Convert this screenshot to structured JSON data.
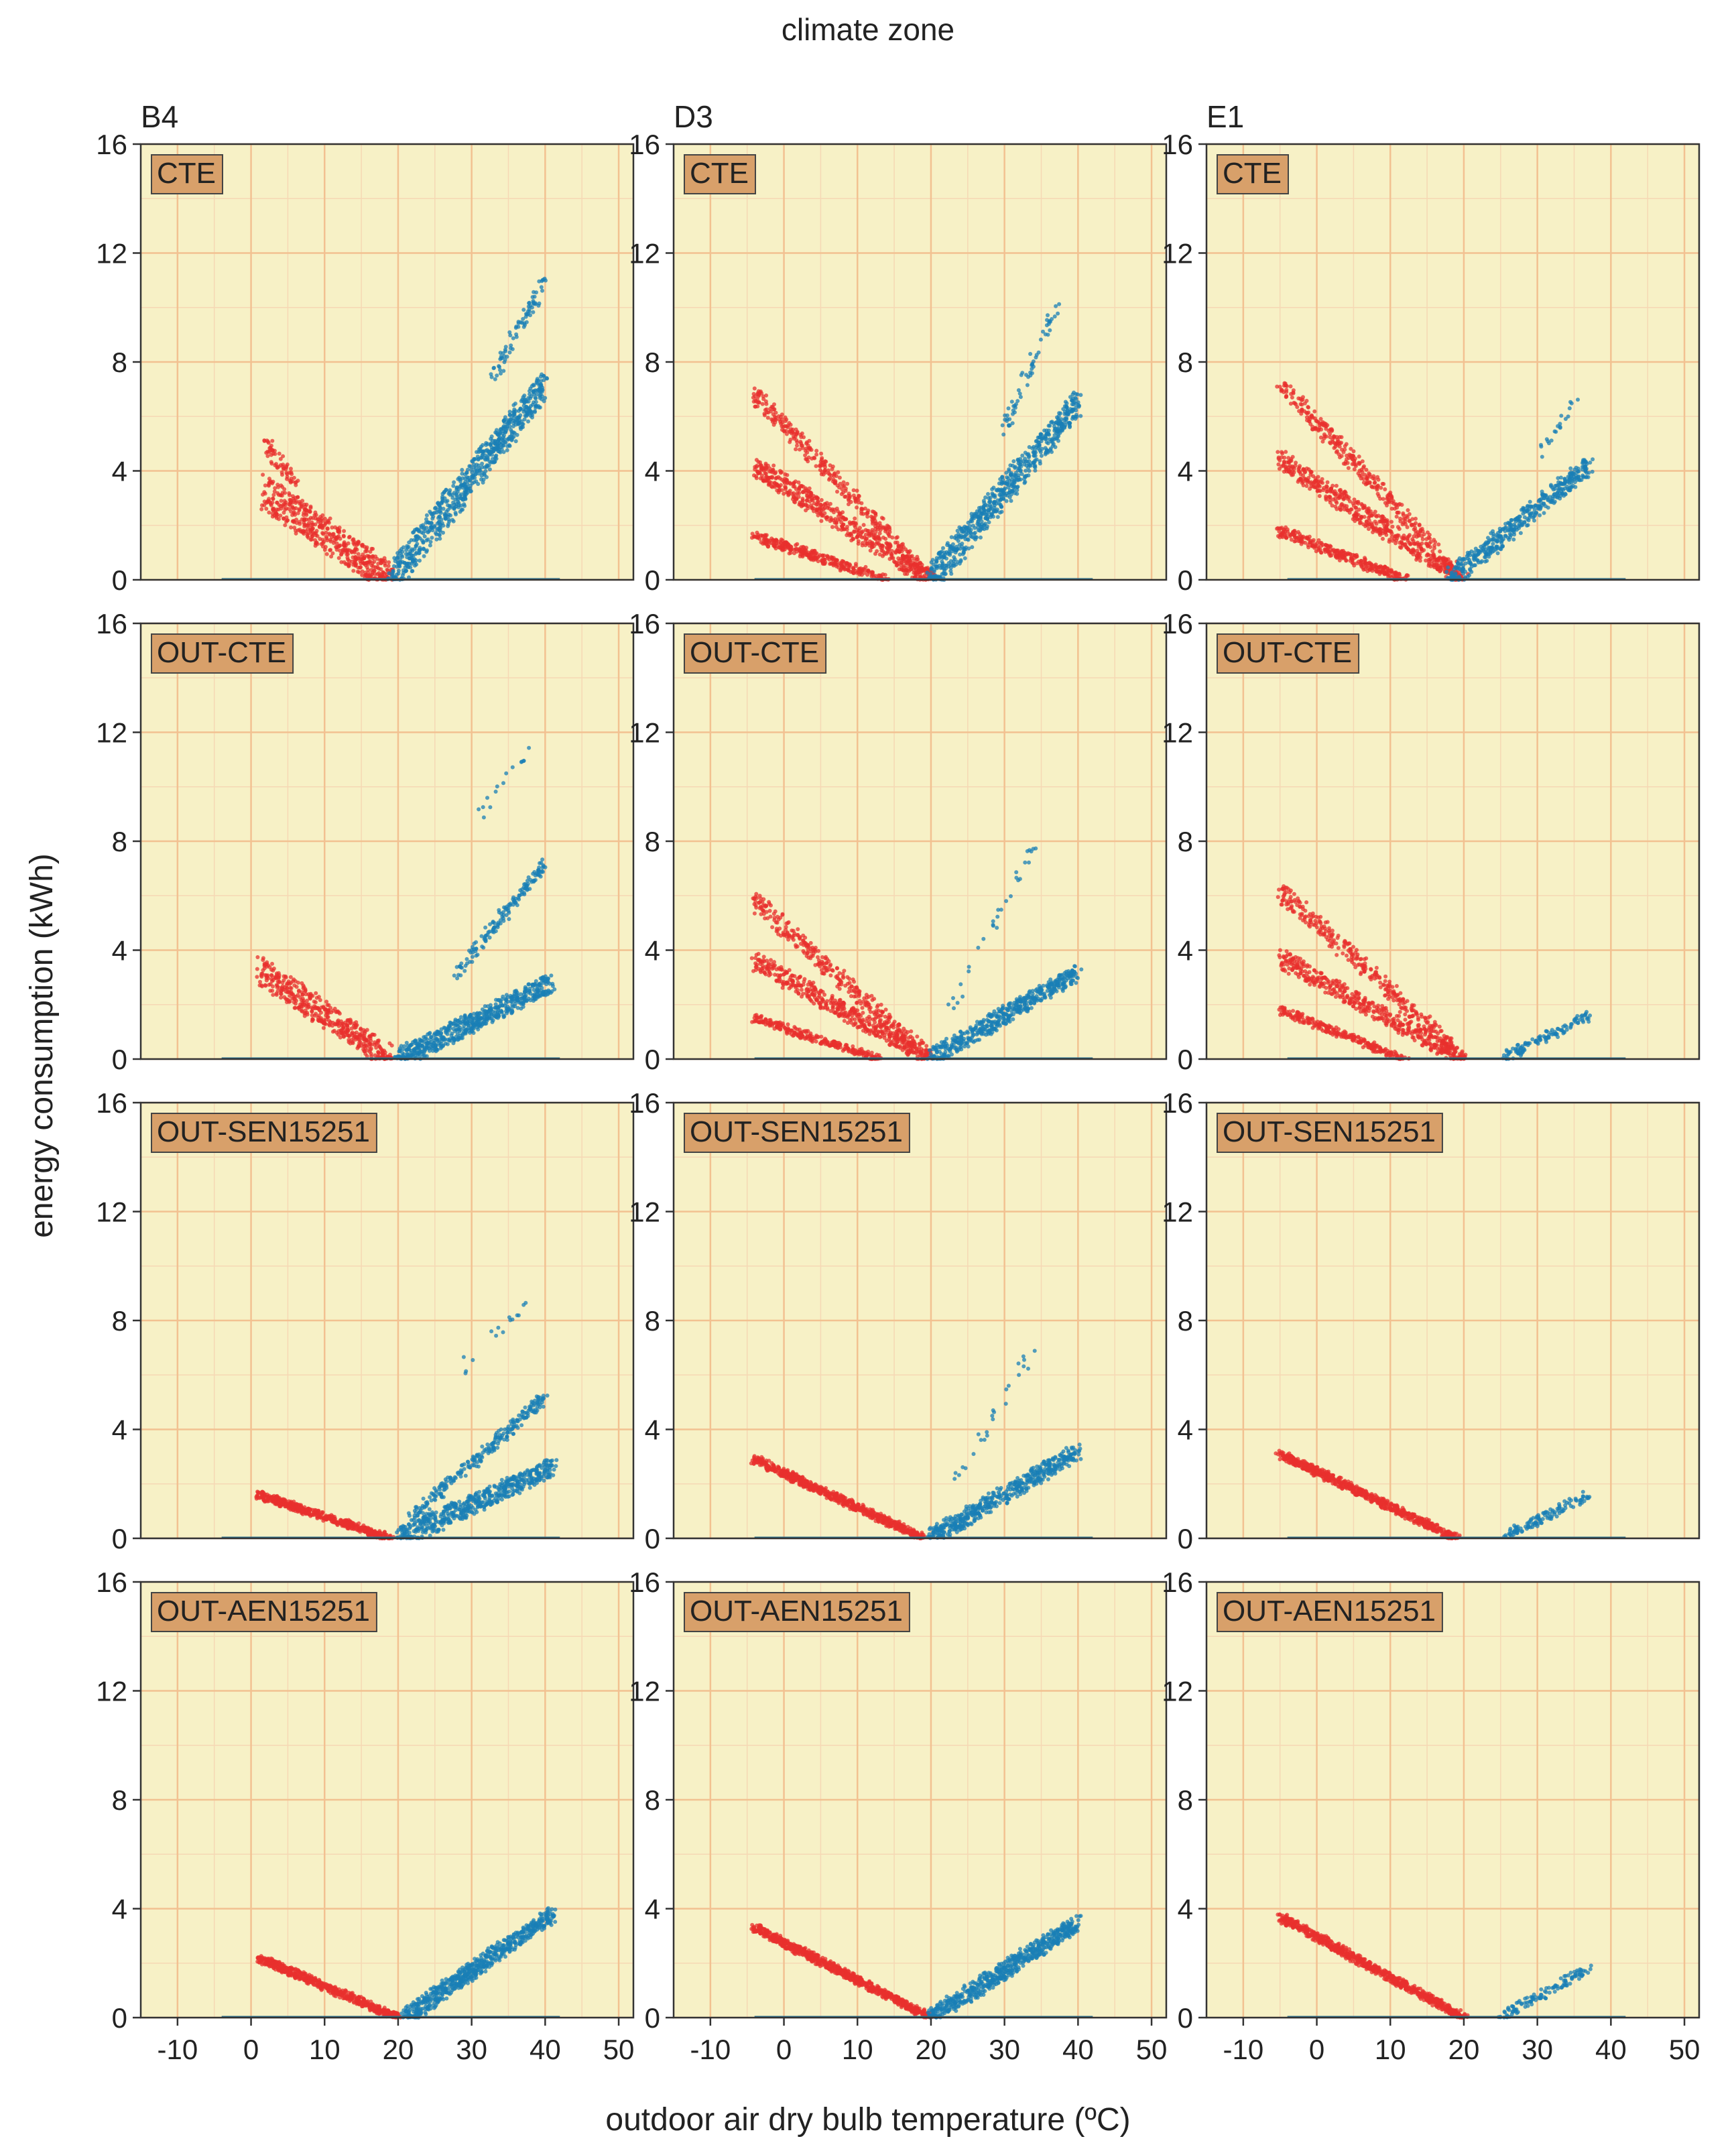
{
  "figure_title": "climate zone",
  "chart_data": {
    "type": "scatter",
    "facet_row_label": "energy consumption (kWh)",
    "facet_col_label": "climate zone",
    "xlabel": "outdoor air dry bulb temperature (ºC)",
    "ylabel": "energy consumption (kWh)",
    "xlim": [
      -15,
      52
    ],
    "ylim": [
      0,
      16
    ],
    "x_ticks": [
      -10,
      0,
      10,
      20,
      30,
      40,
      50
    ],
    "y_ticks": [
      0,
      4,
      8,
      12,
      16
    ],
    "grid": true,
    "columns": [
      "B4",
      "D3",
      "E1"
    ],
    "rows": [
      "CTE",
      "OUT-CTE",
      "OUT-SEN15251",
      "OUT-AEN15251"
    ],
    "series_colors": {
      "heating": "#e8302e",
      "cooling": "#1a7fb5"
    },
    "panels": [
      {
        "zone": "B4",
        "scenario": "CTE",
        "heating": [
          {
            "x": [
              2,
              19
            ],
            "y": [
              3.2,
              0
            ],
            "spread": 1.4,
            "n": 500
          },
          {
            "x": [
              2,
              6
            ],
            "y": [
              5,
              3.6
            ],
            "spread": 0.6,
            "n": 60
          }
        ],
        "cooling": [
          {
            "x": [
              19,
              40
            ],
            "y": [
              0,
              7.2
            ],
            "spread": 1.3,
            "n": 700
          },
          {
            "x": [
              33,
              40
            ],
            "y": [
              7.5,
              11
            ],
            "spread": 0.6,
            "n": 80
          }
        ]
      },
      {
        "zone": "D3",
        "scenario": "CTE",
        "heating": [
          {
            "x": [
              -4,
              20
            ],
            "y": [
              6.8,
              0
            ],
            "spread": 0.7,
            "n": 350
          },
          {
            "x": [
              -4,
              20
            ],
            "y": [
              4.2,
              0
            ],
            "spread": 0.8,
            "n": 500
          },
          {
            "x": [
              -4,
              14
            ],
            "y": [
              1.6,
              0
            ],
            "spread": 0.4,
            "n": 300
          }
        ],
        "cooling": [
          {
            "x": [
              20,
              40
            ],
            "y": [
              0,
              6.5
            ],
            "spread": 1.2,
            "n": 650
          },
          {
            "x": [
              30,
              37
            ],
            "y": [
              5.5,
              10
            ],
            "spread": 0.5,
            "n": 60
          }
        ]
      },
      {
        "zone": "E1",
        "scenario": "CTE",
        "heating": [
          {
            "x": [
              -5,
              20
            ],
            "y": [
              7.2,
              0
            ],
            "spread": 0.7,
            "n": 350
          },
          {
            "x": [
              -5,
              20
            ],
            "y": [
              4.4,
              0
            ],
            "spread": 0.8,
            "n": 500
          },
          {
            "x": [
              -5,
              12
            ],
            "y": [
              1.8,
              0
            ],
            "spread": 0.4,
            "n": 300
          }
        ],
        "cooling": [
          {
            "x": [
              18,
              37
            ],
            "y": [
              0,
              4.2
            ],
            "spread": 0.8,
            "n": 450
          },
          {
            "x": [
              30,
              36
            ],
            "y": [
              4.5,
              6.8
            ],
            "spread": 0.3,
            "n": 20
          }
        ]
      },
      {
        "zone": "B4",
        "scenario": "OUT-CTE",
        "heating": [
          {
            "x": [
              1,
              19
            ],
            "y": [
              3.3,
              0
            ],
            "spread": 1.1,
            "n": 450
          }
        ],
        "cooling": [
          {
            "x": [
              20,
              41
            ],
            "y": [
              0,
              2.8
            ],
            "spread": 0.8,
            "n": 600
          },
          {
            "x": [
              28,
              40
            ],
            "y": [
              3.2,
              7.2
            ],
            "spread": 0.5,
            "n": 150
          },
          {
            "x": [
              30,
              38
            ],
            "y": [
              8.5,
              11.6
            ],
            "spread": 0.4,
            "n": 15
          }
        ]
      },
      {
        "zone": "D3",
        "scenario": "OUT-CTE",
        "heating": [
          {
            "x": [
              -4,
              20
            ],
            "y": [
              5.8,
              0
            ],
            "spread": 0.7,
            "n": 350
          },
          {
            "x": [
              -4,
              20
            ],
            "y": [
              3.6,
              0
            ],
            "spread": 0.7,
            "n": 450
          },
          {
            "x": [
              -4,
              13
            ],
            "y": [
              1.5,
              0
            ],
            "spread": 0.3,
            "n": 250
          }
        ],
        "cooling": [
          {
            "x": [
              20,
              40
            ],
            "y": [
              0,
              3.2
            ],
            "spread": 0.7,
            "n": 500
          },
          {
            "x": [
              22,
              34
            ],
            "y": [
              1.5,
              7.8
            ],
            "spread": 0.3,
            "n": 30
          }
        ]
      },
      {
        "zone": "E1",
        "scenario": "OUT-CTE",
        "heating": [
          {
            "x": [
              -5,
              20
            ],
            "y": [
              6.2,
              0
            ],
            "spread": 0.7,
            "n": 350
          },
          {
            "x": [
              -5,
              20
            ],
            "y": [
              3.7,
              0
            ],
            "spread": 0.7,
            "n": 450
          },
          {
            "x": [
              -5,
              12
            ],
            "y": [
              1.8,
              0
            ],
            "spread": 0.3,
            "n": 250
          }
        ],
        "cooling": [
          {
            "x": [
              25,
              37
            ],
            "y": [
              0,
              1.6
            ],
            "spread": 0.4,
            "n": 120
          }
        ]
      },
      {
        "zone": "B4",
        "scenario": "OUT-SEN15251",
        "heating": [
          {
            "x": [
              1,
              19
            ],
            "y": [
              1.6,
              0
            ],
            "spread": 0.3,
            "n": 500
          }
        ],
        "cooling": [
          {
            "x": [
              20,
              41
            ],
            "y": [
              0,
              2.6
            ],
            "spread": 0.8,
            "n": 550
          },
          {
            "x": [
              22,
              40
            ],
            "y": [
              0.8,
              5.2
            ],
            "spread": 0.5,
            "n": 250
          },
          {
            "x": [
              28,
              38
            ],
            "y": [
              6,
              8.8
            ],
            "spread": 0.6,
            "n": 15
          }
        ]
      },
      {
        "zone": "D3",
        "scenario": "OUT-SEN15251",
        "heating": [
          {
            "x": [
              -4,
              19
            ],
            "y": [
              2.9,
              0
            ],
            "spread": 0.3,
            "n": 700
          }
        ],
        "cooling": [
          {
            "x": [
              20,
              40
            ],
            "y": [
              0,
              3.2
            ],
            "spread": 0.7,
            "n": 500
          },
          {
            "x": [
              22,
              34
            ],
            "y": [
              1.5,
              7
            ],
            "spread": 0.4,
            "n": 25
          }
        ]
      },
      {
        "zone": "E1",
        "scenario": "OUT-SEN15251",
        "heating": [
          {
            "x": [
              -5,
              19
            ],
            "y": [
              3.1,
              0
            ],
            "spread": 0.3,
            "n": 700
          }
        ],
        "cooling": [
          {
            "x": [
              25,
              37
            ],
            "y": [
              0,
              1.6
            ],
            "spread": 0.4,
            "n": 120
          }
        ]
      },
      {
        "zone": "B4",
        "scenario": "OUT-AEN15251",
        "heating": [
          {
            "x": [
              1,
              20
            ],
            "y": [
              2.2,
              0
            ],
            "spread": 0.3,
            "n": 600
          }
        ],
        "cooling": [
          {
            "x": [
              21,
              41
            ],
            "y": [
              0,
              3.8
            ],
            "spread": 0.7,
            "n": 650
          }
        ]
      },
      {
        "zone": "D3",
        "scenario": "OUT-AEN15251",
        "heating": [
          {
            "x": [
              -4,
              20
            ],
            "y": [
              3.3,
              0
            ],
            "spread": 0.3,
            "n": 800
          }
        ],
        "cooling": [
          {
            "x": [
              20,
              40
            ],
            "y": [
              0,
              3.5
            ],
            "spread": 0.7,
            "n": 600
          }
        ]
      },
      {
        "zone": "E1",
        "scenario": "OUT-AEN15251",
        "heating": [
          {
            "x": [
              -5,
              20
            ],
            "y": [
              3.7,
              0
            ],
            "spread": 0.3,
            "n": 800
          }
        ],
        "cooling": [
          {
            "x": [
              25,
              37
            ],
            "y": [
              0,
              1.8
            ],
            "spread": 0.4,
            "n": 120
          }
        ]
      }
    ]
  }
}
